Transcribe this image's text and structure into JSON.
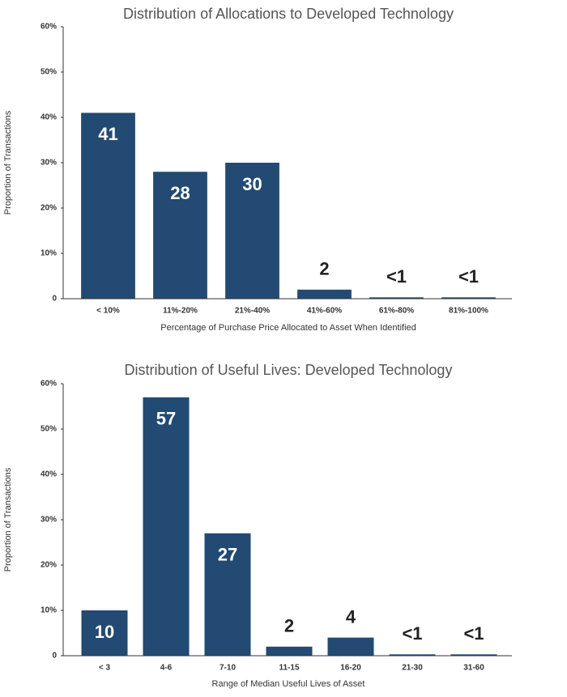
{
  "chart_data": [
    {
      "type": "bar",
      "title": "Distribution of Allocations to Developed Technology",
      "x_label": "Percentage of Purchase Price Allocated to Asset When Identified",
      "y_label": "Proportion of Transactions",
      "categories": [
        "< 10%",
        "11%-20%",
        "21%-40%",
        "41%-60%",
        "61%-80%",
        "81%-100%"
      ],
      "values": [
        41,
        28,
        30,
        2,
        0.3,
        0.3
      ],
      "value_labels": [
        "41",
        "28",
        "30",
        "2",
        "<1",
        "<1"
      ],
      "color": "#224a72",
      "ylim": [
        0,
        60
      ],
      "yticks": [
        {
          "value": 0,
          "label": "0"
        },
        {
          "value": 10,
          "label": "10%"
        },
        {
          "value": 20,
          "label": "20%"
        },
        {
          "value": 30,
          "label": "30%"
        },
        {
          "value": 40,
          "label": "40%"
        },
        {
          "value": 50,
          "label": "50%"
        },
        {
          "value": 60,
          "label": "60%"
        }
      ]
    },
    {
      "type": "bar",
      "title": "Distribution of Useful Lives: Developed Technology",
      "x_label": "Range of Median Useful Lives of Asset",
      "y_label": "Proportion of Transactions",
      "categories": [
        "< 3",
        "4-6",
        "7-10",
        "11-15",
        "16-20",
        "21-30",
        "31-60"
      ],
      "values": [
        10,
        57,
        27,
        2,
        4,
        0.3,
        0.3
      ],
      "value_labels": [
        "10",
        "57",
        "27",
        "2",
        "4",
        "<1",
        "<1"
      ],
      "color": "#224a72",
      "ylim": [
        0,
        60
      ],
      "yticks": [
        {
          "value": 0,
          "label": "0"
        },
        {
          "value": 10,
          "label": "10%"
        },
        {
          "value": 20,
          "label": "20%"
        },
        {
          "value": 30,
          "label": "30%"
        },
        {
          "value": 40,
          "label": "40%"
        },
        {
          "value": 50,
          "label": "50%"
        },
        {
          "value": 60,
          "label": "60%"
        }
      ]
    }
  ]
}
